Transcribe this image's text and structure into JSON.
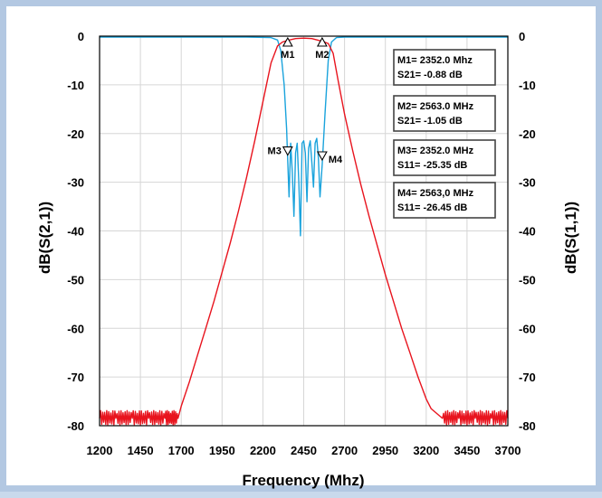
{
  "chart_data": {
    "type": "line",
    "xlabel": "Frequency (Mhz)",
    "ylabel_left": "dB(S(2,1))",
    "ylabel_right": "dB(S(1,1))",
    "xlim": [
      1200,
      3700
    ],
    "ylim": [
      -80,
      0
    ],
    "x_ticks": [
      "1200",
      "1450",
      "1700",
      "1950",
      "2200",
      "2450",
      "2700",
      "2950",
      "3200",
      "3450",
      "3700"
    ],
    "x_tick_values": [
      1200,
      1450,
      1700,
      1950,
      2200,
      2450,
      2700,
      2950,
      3200,
      3450,
      3700
    ],
    "y_ticks": [
      "0",
      "-10",
      "-20",
      "-30",
      "-40",
      "-50",
      "-60",
      "-70",
      "-80"
    ],
    "y_tick_values": [
      0,
      -10,
      -20,
      -30,
      -40,
      -50,
      -60,
      -70,
      -80
    ],
    "grid": true,
    "series": [
      {
        "key": "s21",
        "color": "#e8141e",
        "x": [
          1200,
          1300,
          1400,
          1500,
          1600,
          1680,
          1700,
          1750,
          1800,
          1850,
          1900,
          1950,
          2000,
          2050,
          2100,
          2150,
          2200,
          2250,
          2290,
          2320,
          2352,
          2400,
          2450,
          2500,
          2563,
          2600,
          2630,
          2660,
          2700,
          2750,
          2800,
          2850,
          2900,
          2950,
          3000,
          3050,
          3100,
          3150,
          3200,
          3230,
          3300,
          3400,
          3500,
          3600,
          3700
        ],
        "y": [
          -78.5,
          -78.5,
          -78.5,
          -78.5,
          -78.5,
          -78.5,
          -76,
          -71,
          -65.5,
          -60,
          -54.5,
          -48.5,
          -42.5,
          -36,
          -29,
          -21.5,
          -13.5,
          -5.5,
          -2,
          -1.2,
          -0.88,
          -0.5,
          -0.4,
          -0.5,
          -1.05,
          -1.5,
          -3.5,
          -9,
          -16,
          -23.5,
          -30.5,
          -37,
          -43,
          -49,
          -54.5,
          -60,
          -65,
          -70,
          -74.5,
          -76.5,
          -78.5,
          -78.5,
          -78.5,
          -78.5,
          -78.5
        ]
      },
      {
        "key": "s11",
        "color": "#1aa3dc",
        "x": [
          1200,
          1500,
          1800,
          2100,
          2250,
          2290,
          2310,
          2330,
          2345,
          2352,
          2360,
          2370,
          2380,
          2390,
          2400,
          2410,
          2420,
          2430,
          2440,
          2450,
          2460,
          2470,
          2480,
          2490,
          2500,
          2510,
          2520,
          2530,
          2540,
          2550,
          2563,
          2580,
          2600,
          2620,
          2650,
          2700,
          3000,
          3400,
          3700
        ],
        "y": [
          -0.2,
          -0.2,
          -0.2,
          -0.2,
          -0.3,
          -0.8,
          -3,
          -10,
          -19,
          -25.35,
          -33,
          -22,
          -28,
          -37,
          -24,
          -22,
          -30,
          -41,
          -22,
          -21.5,
          -24,
          -34,
          -23,
          -21.5,
          -26,
          -31,
          -22,
          -21,
          -25,
          -33,
          -26.45,
          -16,
          -5,
          -1.2,
          -0.3,
          -0.2,
          -0.2,
          -0.2,
          -0.2
        ]
      }
    ],
    "markers": [
      {
        "label": "M1",
        "x": 2352,
        "y": 0,
        "pos": "below"
      },
      {
        "label": "M2",
        "x": 2563,
        "y": 0,
        "pos": "below"
      },
      {
        "label": "M3",
        "x": 2352,
        "y": -23.5,
        "pos": "left"
      },
      {
        "label": "M4",
        "x": 2563,
        "y": -24.5,
        "pos": "right"
      }
    ],
    "marker_boxes": [
      {
        "line1": "M1= 2352.0 Mhz",
        "line2": "S21= -0.88 dB"
      },
      {
        "line1": "M2= 2563.0 MHz",
        "line2": "S21= -1.05 dB"
      },
      {
        "line1": "M3= 2352.0 MHz",
        "line2": "S11= -25.35 dB"
      },
      {
        "line1": "M4= 2563,0 MHz",
        "line2": "S11= -26.45 dB"
      }
    ]
  }
}
